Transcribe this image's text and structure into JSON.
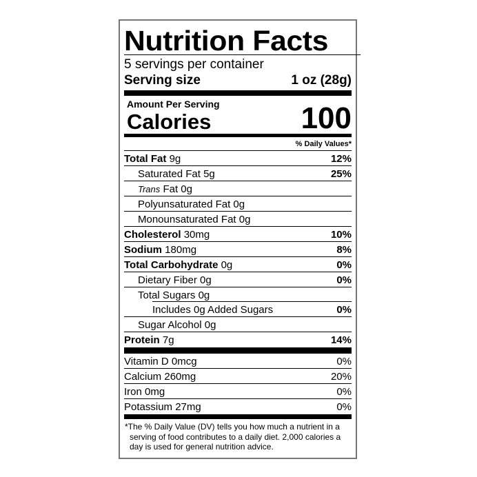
{
  "title": "Nutrition Facts",
  "servings_per_container": "5 servings per container",
  "serving_size": {
    "label": "Serving size",
    "value": "1 oz (28g)"
  },
  "amount_per_serving": "Amount Per Serving",
  "calories": {
    "label": "Calories",
    "value": "100"
  },
  "dv_header": "% Daily Values*",
  "nutrients": [
    {
      "name": "Total Fat",
      "amount": "9g",
      "dv": "12%"
    },
    {
      "name": "Saturated Fat",
      "amount": "5g",
      "dv": "25%"
    },
    {
      "name_italic": "Trans",
      "name": "Fat",
      "amount": "0g",
      "dv": ""
    },
    {
      "name": "Polyunsaturated Fat",
      "amount": "0g",
      "dv": ""
    },
    {
      "name": "Monounsaturated Fat",
      "amount": "0g",
      "dv": ""
    },
    {
      "name": "Cholesterol",
      "amount": "30mg",
      "dv": "10%"
    },
    {
      "name": "Sodium",
      "amount": "180mg",
      "dv": "8%"
    },
    {
      "name": "Total Carbohydrate",
      "amount": "0g",
      "dv": "0%"
    },
    {
      "name": "Dietary Fiber",
      "amount": "0g",
      "dv": "0%"
    },
    {
      "name": "Total Sugars",
      "amount": "0g",
      "dv": ""
    },
    {
      "name": "Includes 0g Added Sugars",
      "amount": "",
      "dv": "0%"
    },
    {
      "name": "Sugar Alcohol",
      "amount": "0g",
      "dv": ""
    },
    {
      "name": "Protein",
      "amount": "7g",
      "dv": "14%"
    }
  ],
  "vitamins": [
    {
      "name": "Vitamin D",
      "amount": "0mcg",
      "dv": "0%"
    },
    {
      "name": "Calcium",
      "amount": "260mg",
      "dv": "20%"
    },
    {
      "name": "Iron",
      "amount": "0mg",
      "dv": "0%"
    },
    {
      "name": "Potassium",
      "amount": "27mg",
      "dv": "0%"
    }
  ],
  "footnote": "*The % Daily Value (DV) tells you how much a nutrient in a serving of food contributes to a daily diet. 2,000 calories a day is used for general nutrition advice."
}
